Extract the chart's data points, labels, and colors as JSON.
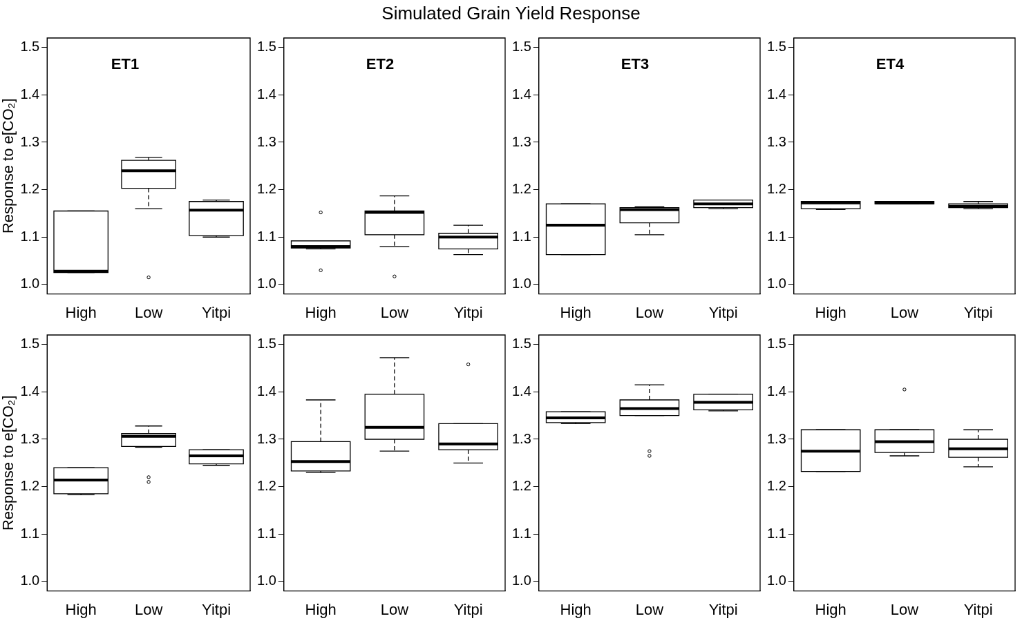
{
  "chart_data": [
    {
      "type": "box",
      "title": "ET1",
      "ylabel": "Response to e[CO₂]",
      "annotations": [
        "Simulated Grain Yield Response"
      ],
      "categories": [
        "High",
        "Low",
        "Yitpi"
      ],
      "color": "#000000",
      "grid": false,
      "ylim": [
        0.98,
        1.52
      ],
      "yticks": [
        {
          "value": 1,
          "label": "1.0"
        },
        {
          "value": 1.1,
          "label": "1.1"
        },
        {
          "value": 1.2,
          "label": "1.2"
        },
        {
          "value": 1.3,
          "label": "1.3"
        },
        {
          "value": 1.4,
          "label": "1.4"
        },
        {
          "value": 1.5,
          "label": "1.5"
        }
      ],
      "boxes": [
        {
          "low": 1.025,
          "q1": 1.025,
          "median": 1.028,
          "q3": 1.155,
          "high": 1.155
        },
        {
          "low": 1.16,
          "q1": 1.203,
          "median": 1.24,
          "q3": 1.262,
          "high": 1.268,
          "outliers": [
            1.015
          ]
        },
        {
          "low": 1.1,
          "q1": 1.103,
          "median": 1.157,
          "q3": 1.175,
          "high": 1.178
        }
      ]
    },
    {
      "type": "box",
      "title": "ET2",
      "categories": [
        "High",
        "Low",
        "Yitpi"
      ],
      "color": "#000000",
      "grid": false,
      "ylim": [
        0.98,
        1.52
      ],
      "yticks": [
        {
          "value": 1,
          "label": "1.0"
        },
        {
          "value": 1.1,
          "label": "1.1"
        },
        {
          "value": 1.2,
          "label": "1.2"
        },
        {
          "value": 1.3,
          "label": "1.3"
        },
        {
          "value": 1.4,
          "label": "1.4"
        },
        {
          "value": 1.5,
          "label": "1.5"
        }
      ],
      "boxes": [
        {
          "low": 1.075,
          "q1": 1.077,
          "median": 1.08,
          "q3": 1.092,
          "high": 1.092,
          "outliers": [
            1.152,
            1.03
          ]
        },
        {
          "low": 1.08,
          "q1": 1.105,
          "median": 1.152,
          "q3": 1.155,
          "high": 1.187,
          "outliers": [
            1.017
          ]
        },
        {
          "low": 1.063,
          "q1": 1.075,
          "median": 1.1,
          "q3": 1.108,
          "high": 1.125
        }
      ]
    },
    {
      "type": "box",
      "title": "ET3",
      "categories": [
        "High",
        "Low",
        "Yitpi"
      ],
      "color": "#000000",
      "grid": false,
      "ylim": [
        0.98,
        1.52
      ],
      "yticks": [
        {
          "value": 1,
          "label": "1.0"
        },
        {
          "value": 1.1,
          "label": "1.1"
        },
        {
          "value": 1.2,
          "label": "1.2"
        },
        {
          "value": 1.3,
          "label": "1.3"
        },
        {
          "value": 1.4,
          "label": "1.4"
        },
        {
          "value": 1.5,
          "label": "1.5"
        }
      ],
      "boxes": [
        {
          "low": 1.063,
          "q1": 1.063,
          "median": 1.125,
          "q3": 1.17,
          "high": 1.17
        },
        {
          "low": 1.105,
          "q1": 1.13,
          "median": 1.158,
          "q3": 1.162,
          "high": 1.164
        },
        {
          "low": 1.16,
          "q1": 1.162,
          "median": 1.17,
          "q3": 1.178,
          "high": 1.178
        }
      ]
    },
    {
      "type": "box",
      "title": "ET4",
      "categories": [
        "High",
        "Low",
        "Yitpi"
      ],
      "color": "#000000",
      "grid": false,
      "ylim": [
        0.98,
        1.52
      ],
      "yticks": [
        {
          "value": 1,
          "label": "1.0"
        },
        {
          "value": 1.1,
          "label": "1.1"
        },
        {
          "value": 1.2,
          "label": "1.2"
        },
        {
          "value": 1.3,
          "label": "1.3"
        },
        {
          "value": 1.4,
          "label": "1.4"
        },
        {
          "value": 1.5,
          "label": "1.5"
        }
      ],
      "boxes": [
        {
          "low": 1.158,
          "q1": 1.16,
          "median": 1.172,
          "q3": 1.175,
          "high": 1.175
        },
        {
          "low": 1.17,
          "q1": 1.17,
          "median": 1.172,
          "q3": 1.175,
          "high": 1.175
        },
        {
          "low": 1.16,
          "q1": 1.162,
          "median": 1.165,
          "q3": 1.17,
          "high": 1.175
        }
      ]
    },
    {
      "type": "box",
      "ylabel": "Response to e[CO₂]",
      "categories": [
        "High",
        "Low",
        "Yitpi"
      ],
      "color": "#000000",
      "grid": false,
      "ylim": [
        0.98,
        1.52
      ],
      "yticks": [
        {
          "value": 1,
          "label": "1.0"
        },
        {
          "value": 1.1,
          "label": "1.1"
        },
        {
          "value": 1.2,
          "label": "1.2"
        },
        {
          "value": 1.3,
          "label": "1.3"
        },
        {
          "value": 1.4,
          "label": "1.4"
        },
        {
          "value": 1.5,
          "label": "1.5"
        }
      ],
      "boxes": [
        {
          "low": 1.183,
          "q1": 1.185,
          "median": 1.214,
          "q3": 1.24,
          "high": 1.24
        },
        {
          "low": 1.283,
          "q1": 1.285,
          "median": 1.306,
          "q3": 1.312,
          "high": 1.328,
          "outliers": [
            1.21,
            1.22
          ]
        },
        {
          "low": 1.245,
          "q1": 1.248,
          "median": 1.265,
          "q3": 1.278,
          "high": 1.278
        }
      ]
    },
    {
      "type": "box",
      "categories": [
        "High",
        "Low",
        "Yitpi"
      ],
      "color": "#000000",
      "grid": false,
      "ylim": [
        0.98,
        1.52
      ],
      "yticks": [
        {
          "value": 1,
          "label": "1.0"
        },
        {
          "value": 1.1,
          "label": "1.1"
        },
        {
          "value": 1.2,
          "label": "1.2"
        },
        {
          "value": 1.3,
          "label": "1.3"
        },
        {
          "value": 1.4,
          "label": "1.4"
        },
        {
          "value": 1.5,
          "label": "1.5"
        }
      ],
      "boxes": [
        {
          "low": 1.23,
          "q1": 1.233,
          "median": 1.253,
          "q3": 1.295,
          "high": 1.383
        },
        {
          "low": 1.275,
          "q1": 1.3,
          "median": 1.325,
          "q3": 1.395,
          "high": 1.472
        },
        {
          "low": 1.25,
          "q1": 1.278,
          "median": 1.29,
          "q3": 1.333,
          "high": 1.333,
          "outliers": [
            1.458
          ]
        }
      ]
    },
    {
      "type": "box",
      "categories": [
        "High",
        "Low",
        "Yitpi"
      ],
      "color": "#000000",
      "grid": false,
      "ylim": [
        0.98,
        1.52
      ],
      "yticks": [
        {
          "value": 1,
          "label": "1.0"
        },
        {
          "value": 1.1,
          "label": "1.1"
        },
        {
          "value": 1.2,
          "label": "1.2"
        },
        {
          "value": 1.3,
          "label": "1.3"
        },
        {
          "value": 1.4,
          "label": "1.4"
        },
        {
          "value": 1.5,
          "label": "1.5"
        }
      ],
      "boxes": [
        {
          "low": 1.333,
          "q1": 1.335,
          "median": 1.345,
          "q3": 1.358,
          "high": 1.358
        },
        {
          "low": 1.35,
          "q1": 1.35,
          "median": 1.365,
          "q3": 1.383,
          "high": 1.415,
          "outliers": [
            1.265,
            1.275
          ]
        },
        {
          "low": 1.36,
          "q1": 1.362,
          "median": 1.378,
          "q3": 1.395,
          "high": 1.395
        }
      ]
    },
    {
      "type": "box",
      "categories": [
        "High",
        "Low",
        "Yitpi"
      ],
      "color": "#000000",
      "grid": false,
      "ylim": [
        0.98,
        1.52
      ],
      "yticks": [
        {
          "value": 1,
          "label": "1.0"
        },
        {
          "value": 1.1,
          "label": "1.1"
        },
        {
          "value": 1.2,
          "label": "1.2"
        },
        {
          "value": 1.3,
          "label": "1.3"
        },
        {
          "value": 1.4,
          "label": "1.4"
        },
        {
          "value": 1.5,
          "label": "1.5"
        }
      ],
      "boxes": [
        {
          "low": 1.232,
          "q1": 1.232,
          "median": 1.275,
          "q3": 1.32,
          "high": 1.32
        },
        {
          "low": 1.265,
          "q1": 1.272,
          "median": 1.295,
          "q3": 1.32,
          "high": 1.32,
          "outliers": [
            1.405
          ]
        },
        {
          "low": 1.242,
          "q1": 1.262,
          "median": 1.28,
          "q3": 1.3,
          "high": 1.32
        }
      ]
    }
  ]
}
